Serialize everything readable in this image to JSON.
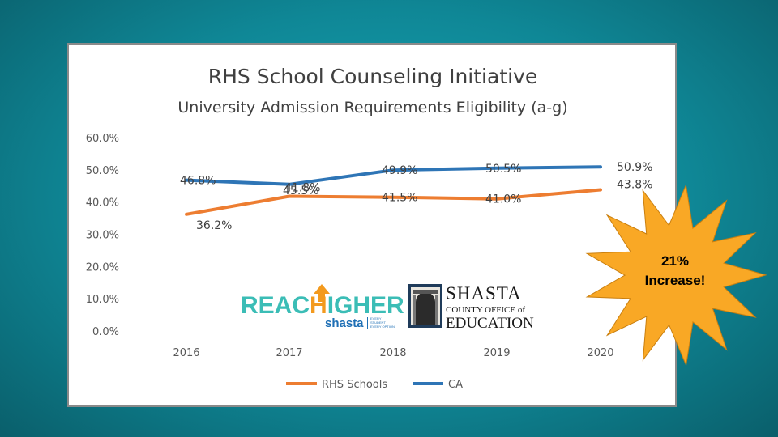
{
  "colors": {
    "background": "#128f9e",
    "rhs": "#ED7D31",
    "ca": "#2E75B6",
    "burst": "#F9A825",
    "reach_teal": "#3bbdb6",
    "reach_orange": "#f39a1e",
    "reach_blue": "#1e6fb5"
  },
  "chart_data": {
    "type": "line",
    "title": "RHS School Counseling Initiative",
    "subtitle": "University Admission Requirements  Eligibility (a-g)",
    "categories": [
      "2016",
      "2017",
      "2018",
      "2019",
      "2020"
    ],
    "ylim": [
      0,
      60
    ],
    "yticks": [
      "0.0%",
      "10.0%",
      "20.0%",
      "30.0%",
      "40.0%",
      "50.0%",
      "60.0%"
    ],
    "grid": false,
    "legend_position": "bottom",
    "series": [
      {
        "name": "RHS Schools",
        "values": [
          36.2,
          41.8,
          41.5,
          41.0,
          43.8
        ],
        "labels": [
          "36.2%",
          "41.8%",
          "41.5%",
          "41.0%",
          "43.8%"
        ]
      },
      {
        "name": "CA",
        "values": [
          46.8,
          45.5,
          49.9,
          50.5,
          50.9
        ],
        "labels": [
          "46.8%",
          "45.5%",
          "49.9%",
          "50.5%",
          "50.9%"
        ]
      }
    ]
  },
  "logos": {
    "reach_higher": {
      "word_reach": "REAC",
      "word_h": "H",
      "word_igher": "IGHER",
      "sub": "shasta",
      "tag": [
        "EVERY",
        "STUDENT",
        "EVERY OPTION"
      ]
    },
    "shasta_coe": {
      "line1": "SHASTA",
      "line2": "COUNTY OFFICE of",
      "line3": "EDUCATION"
    }
  },
  "callout": {
    "line1": "21%",
    "line2": "Increase!"
  },
  "icons": {
    "callout": "starburst-icon",
    "building": "courthouse-icon",
    "arrow": "up-arrow-icon"
  }
}
